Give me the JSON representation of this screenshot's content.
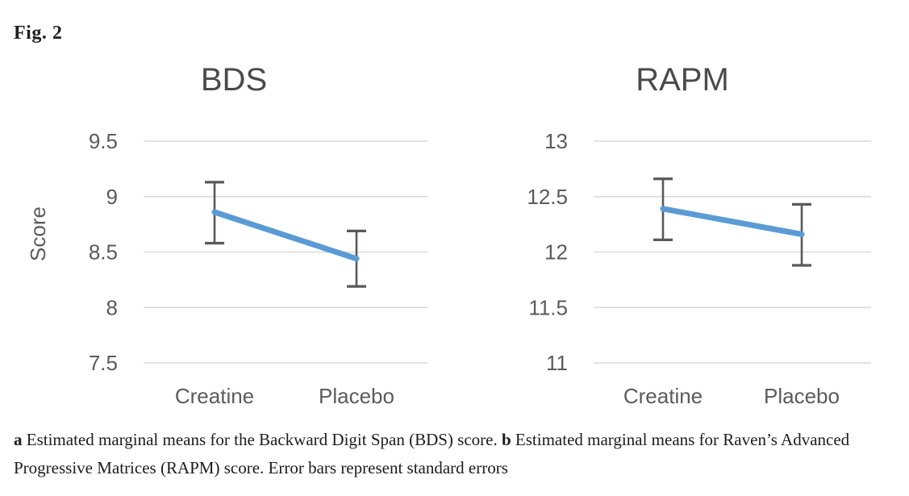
{
  "figure_label": "Fig. 2",
  "caption": {
    "part_a_label": "a",
    "part_a_text": " Estimated marginal means for the Backward Digit Span (BDS) score. ",
    "part_b_label": "b",
    "part_b_text": " Estimated marginal means for Raven’s Advanced Progressive Matrices (RAPM) score. Error bars represent standard errors"
  },
  "colors": {
    "line": "#5B9BD5",
    "error_bar": "#595959",
    "gridline": "#D9D9D9",
    "axis_text": "#5b5b5b",
    "title_text": "#4a4a4a",
    "caption_text": "#1c1c1c"
  },
  "chart_data": [
    {
      "type": "line",
      "title": "BDS",
      "ylabel": "Score",
      "xlabel": "",
      "categories": [
        "Creatine",
        "Placebo"
      ],
      "series": [
        {
          "name": "Estimated marginal mean",
          "values": [
            8.86,
            8.44
          ]
        }
      ],
      "error_bars": [
        {
          "low": 8.58,
          "high": 9.13
        },
        {
          "low": 8.19,
          "high": 8.69
        }
      ],
      "yticks": [
        7.5,
        8,
        8.5,
        9,
        9.5
      ],
      "ylim": [
        7.5,
        9.5
      ],
      "grid": true,
      "legend": "none"
    },
    {
      "type": "line",
      "title": "RAPM",
      "ylabel": "",
      "xlabel": "",
      "categories": [
        "Creatine",
        "Placebo"
      ],
      "series": [
        {
          "name": "Estimated marginal mean",
          "values": [
            12.39,
            12.16
          ]
        }
      ],
      "error_bars": [
        {
          "low": 12.11,
          "high": 12.66
        },
        {
          "low": 11.88,
          "high": 12.43
        }
      ],
      "yticks": [
        11,
        11.5,
        12,
        12.5,
        13
      ],
      "ylim": [
        11,
        13
      ],
      "grid": true,
      "legend": "none"
    }
  ]
}
